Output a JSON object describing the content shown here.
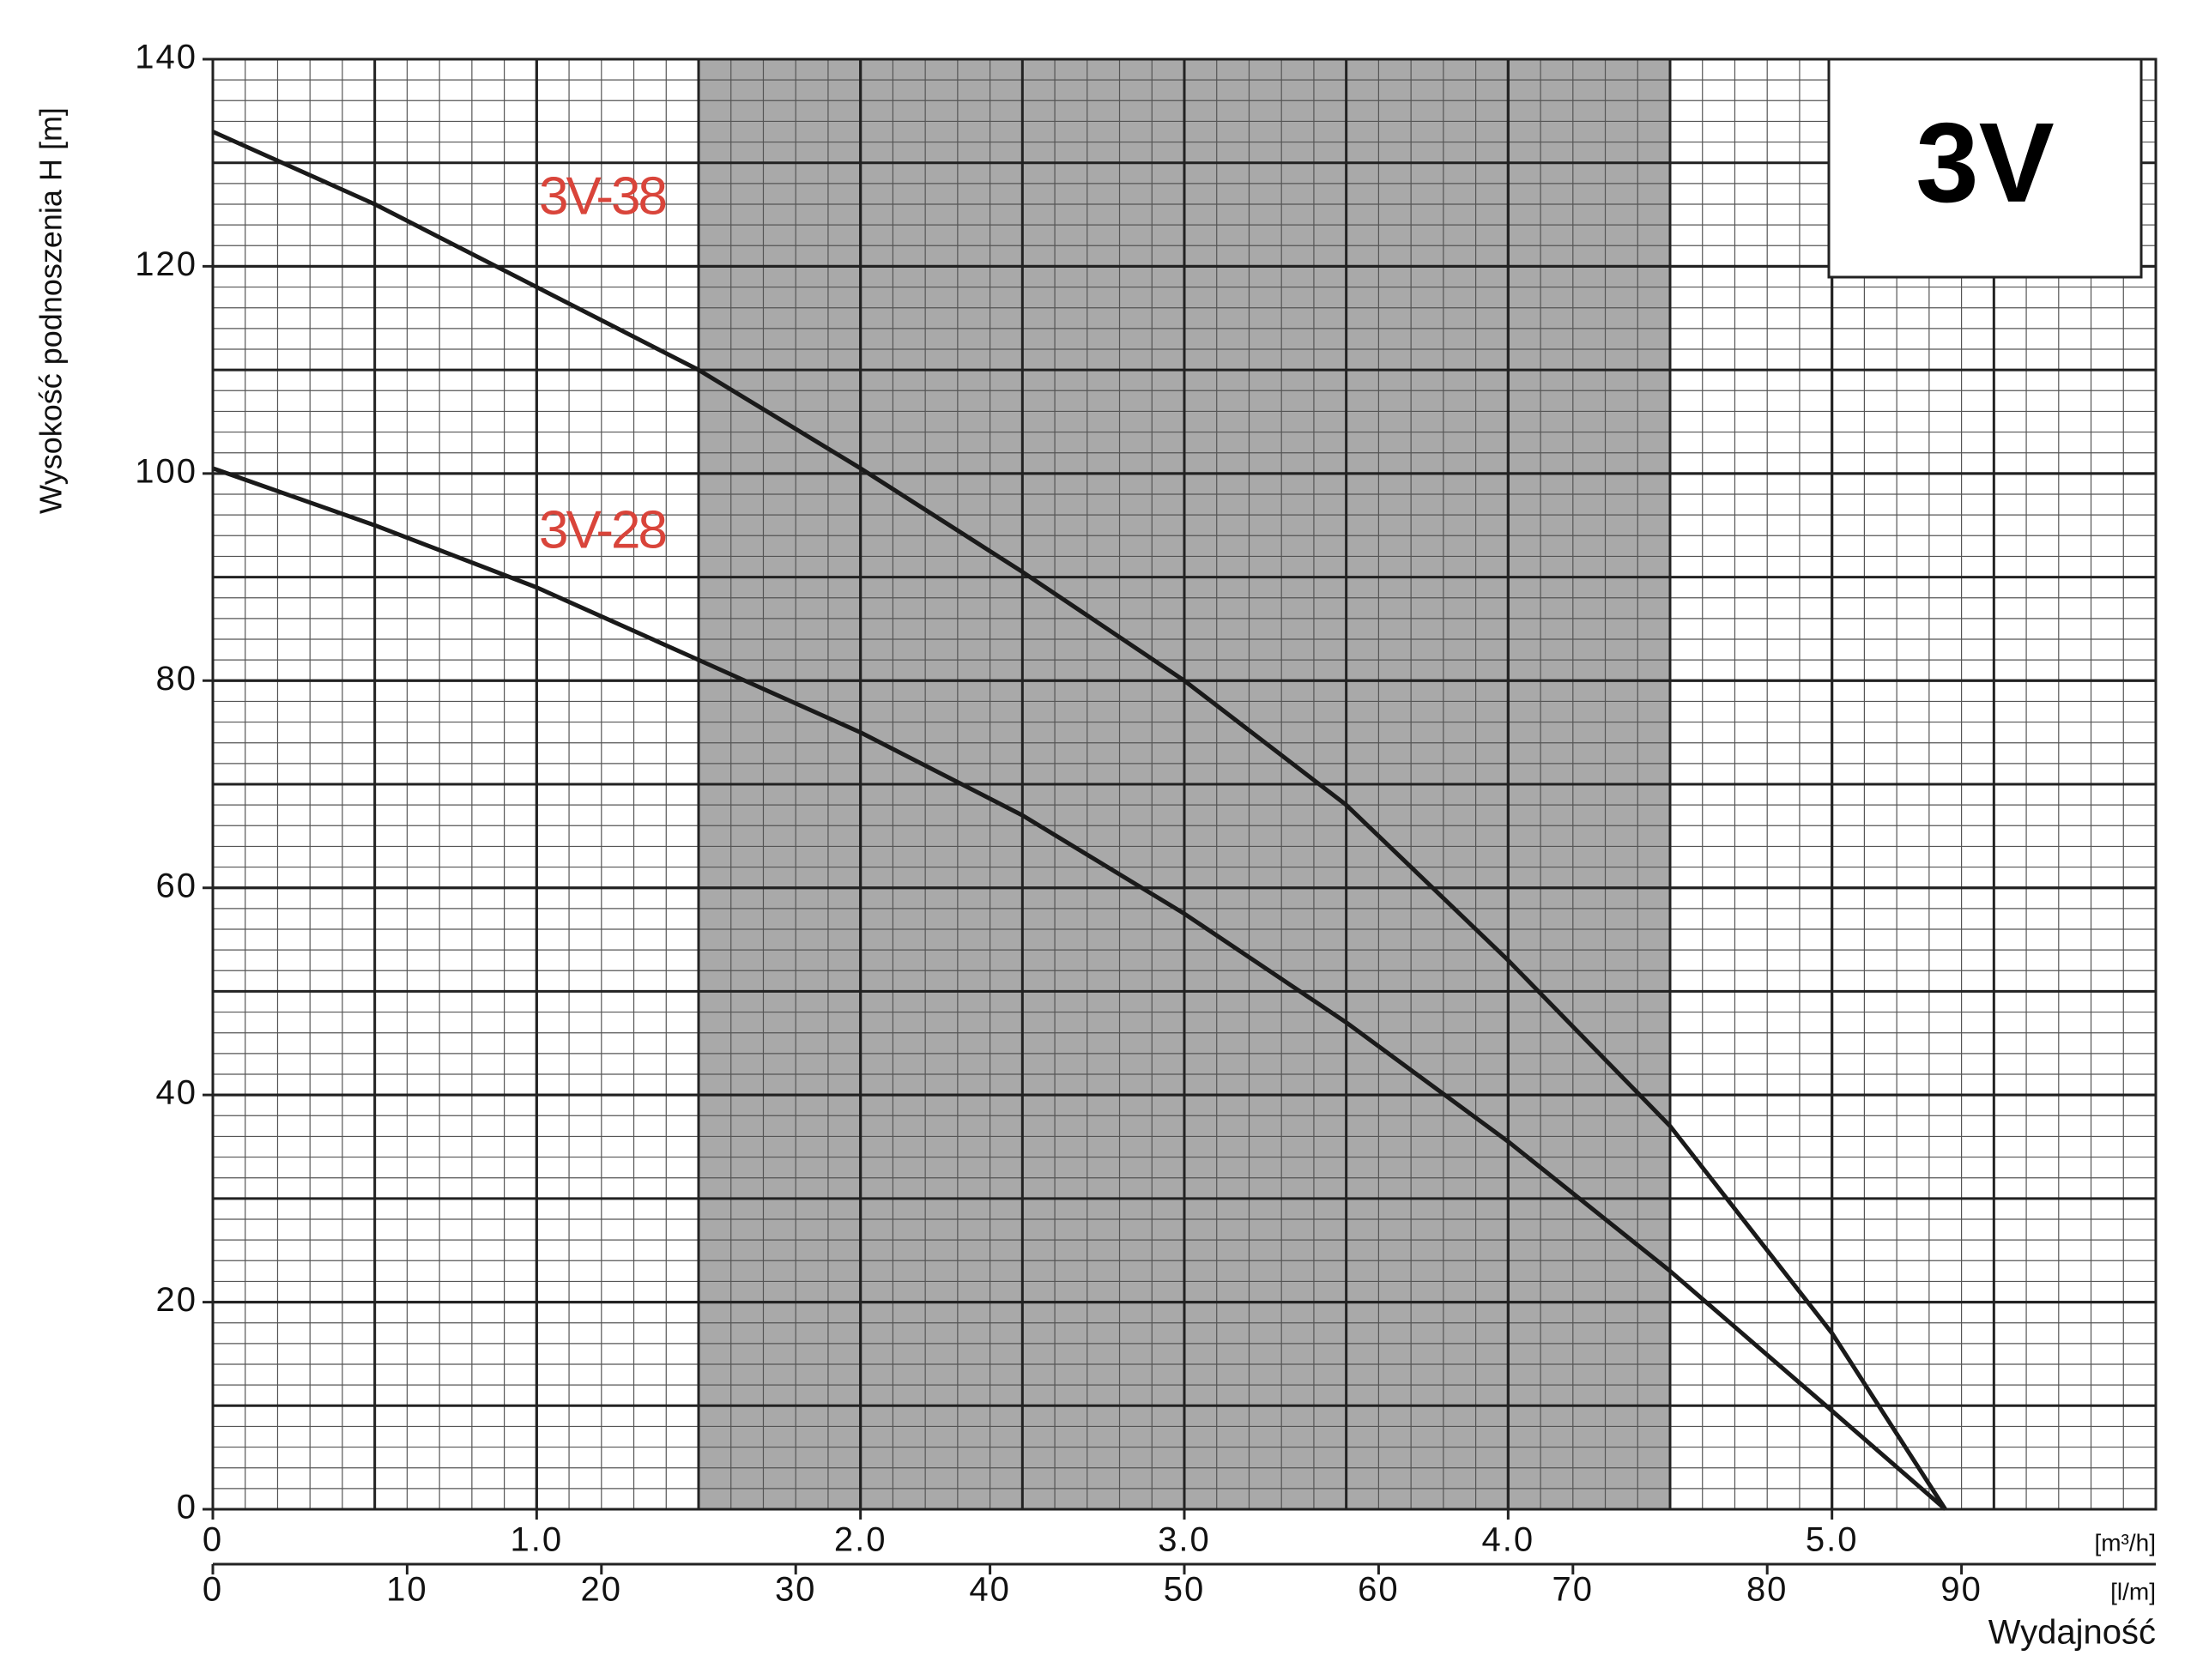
{
  "chart_data": {
    "type": "line",
    "title": "3V",
    "y_label": "Wysokość podnoszenia H [m]",
    "x_label": "Wydajność",
    "x_unit": "[m³/h]",
    "x2_unit": "[l/m]",
    "x": [
      0,
      0.5,
      1.0,
      1.5,
      2.0,
      2.5,
      3.0,
      3.5,
      4.0,
      4.5,
      5.0,
      5.35
    ],
    "series": [
      {
        "name": "3V-38",
        "color": "#1a1a1a",
        "values": [
          133,
          126,
          118,
          110,
          100.5,
          90.5,
          80,
          68,
          53,
          37,
          17,
          0
        ]
      },
      {
        "name": "3V-28",
        "color": "#1a1a1a",
        "values": [
          100.5,
          95,
          89,
          82,
          75,
          67,
          57.5,
          47,
          35.5,
          23,
          9.5,
          0
        ]
      }
    ],
    "label_color": "#d9443a",
    "xlim": [
      0,
      6
    ],
    "xticks": [
      0,
      {
        "value": 1,
        "label": "1.0"
      },
      {
        "value": 2,
        "label": "2.0"
      },
      {
        "value": 3,
        "label": "3.0"
      },
      {
        "value": 4,
        "label": "4.0"
      },
      {
        "value": 5,
        "label": "5.0"
      }
    ],
    "x2lim": [
      0,
      100
    ],
    "x2ticks": [
      0,
      10,
      20,
      30,
      40,
      50,
      60,
      70,
      80,
      90
    ],
    "ylim": [
      0,
      140
    ],
    "yticks": [
      0,
      20,
      40,
      60,
      80,
      100,
      120,
      140
    ],
    "grid": true,
    "major_grid": {
      "x": 0.5,
      "y": 10
    },
    "minor_grid": {
      "x": 0.1,
      "y": 2
    },
    "shaded_range": [
      1.5,
      4.5
    ],
    "shade_color": "#a9a9a9"
  }
}
